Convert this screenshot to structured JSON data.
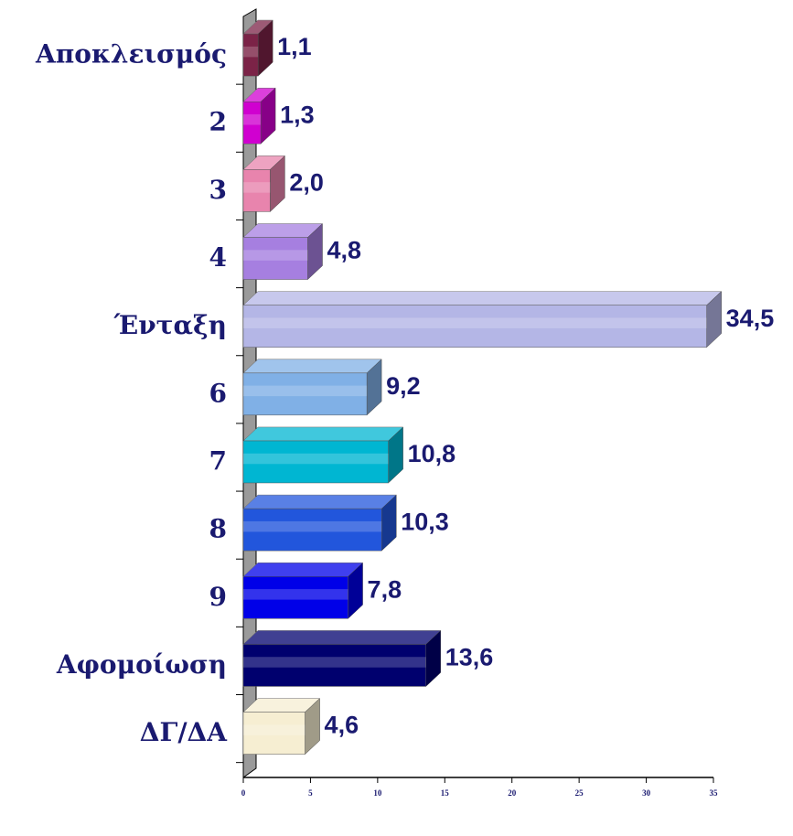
{
  "chart_data": {
    "type": "bar",
    "orientation": "horizontal",
    "categories": [
      "Αποκλεισμός",
      "2",
      "3",
      "4",
      "Ένταξη",
      "6",
      "7",
      "8",
      "9",
      "Αφομοίωση",
      "ΔΓ/ΔΑ"
    ],
    "values": [
      1.1,
      1.3,
      2.0,
      4.8,
      34.5,
      9.2,
      10.8,
      10.3,
      7.8,
      13.6,
      4.6
    ],
    "value_labels": [
      "1,1",
      "1,3",
      "2,0",
      "4,8",
      "34,5",
      "9,2",
      "10,8",
      "10,3",
      "7,8",
      "13,6",
      "4,6"
    ],
    "colors": [
      "#7b2347",
      "#d000d0",
      "#e884ad",
      "#a67fe0",
      "#b4b6e6",
      "#80b0e6",
      "#00b6d2",
      "#2256dc",
      "#0000e8",
      "#00006e",
      "#f6eed2"
    ],
    "xlim": [
      0,
      35
    ],
    "xticks": [
      0,
      5,
      10,
      15,
      20,
      25,
      30,
      35
    ]
  }
}
